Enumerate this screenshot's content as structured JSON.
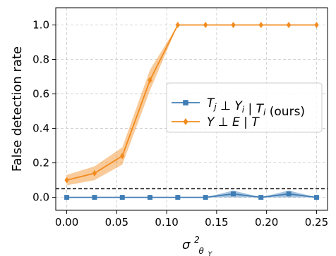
{
  "chart_data": {
    "type": "line",
    "title": "",
    "ylabel": "False detection rate",
    "xlabel_base": "σ",
    "xlabel_sup": "2",
    "xlabel_sub": "θ",
    "xlabel_subsub": "Y",
    "xlim": [
      -0.011,
      0.261
    ],
    "ylim": [
      -0.075,
      1.1
    ],
    "x_ticks": [
      0.0,
      0.05,
      0.1,
      0.15,
      0.2,
      0.25
    ],
    "x_tick_labels": [
      "0.00",
      "0.05",
      "0.10",
      "0.15",
      "0.20",
      "0.25"
    ],
    "y_ticks": [
      0.0,
      0.2,
      0.4,
      0.6,
      0.8,
      1.0
    ],
    "y_tick_labels": [
      "0.0",
      "0.2",
      "0.4",
      "0.6",
      "0.8",
      "1.0"
    ],
    "grid": true,
    "legend_position": "center-right",
    "threshold": {
      "y": 0.05,
      "style": "dashed",
      "color": "#000000"
    },
    "x": [
      0.0,
      0.0278,
      0.0556,
      0.0833,
      0.1111,
      0.1389,
      0.1667,
      0.1944,
      0.2222,
      0.25
    ],
    "series": [
      {
        "name": "T_j ⊥ Y_i | T_i (ours)",
        "legend_parts": [
          "T",
          "j",
          " ⊥ ",
          "Y",
          "i",
          " | ",
          "T",
          "i",
          " (ours)"
        ],
        "color": "#3f7db5",
        "marker": "square",
        "values": [
          0.0,
          0.0,
          0.0,
          0.0,
          0.0,
          0.0,
          0.02,
          0.0,
          0.02,
          0.0
        ],
        "lower": [
          0.0,
          0.0,
          0.0,
          0.0,
          0.0,
          0.0,
          0.0,
          0.0,
          0.0,
          0.0
        ],
        "upper": [
          0.0,
          0.0,
          0.0,
          0.0,
          0.0,
          0.0,
          0.04,
          0.0,
          0.04,
          0.0
        ]
      },
      {
        "name": "Y ⊥ E | T",
        "legend_parts": [
          "Y",
          "",
          " ⊥ ",
          "E",
          "",
          " | ",
          "T",
          "",
          ""
        ],
        "color": "#f28b1e",
        "marker": "diamond",
        "values": [
          0.1,
          0.14,
          0.24,
          0.68,
          1.0,
          1.0,
          1.0,
          1.0,
          1.0,
          1.0
        ],
        "lower": [
          0.07,
          0.1,
          0.19,
          0.62,
          1.0,
          1.0,
          1.0,
          1.0,
          1.0,
          1.0
        ],
        "upper": [
          0.13,
          0.18,
          0.29,
          0.74,
          1.0,
          1.0,
          1.0,
          1.0,
          1.0,
          1.0
        ]
      }
    ]
  }
}
